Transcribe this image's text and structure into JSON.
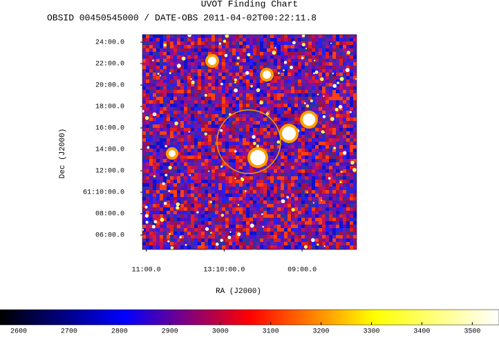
{
  "chart_data": {
    "type": "image",
    "title": "UVOT Finding Chart",
    "subtitle": "OBSID 00450545000 / DATE-OBS 2011-04-02T00:22:11.8",
    "x_label": "RA (J2000)",
    "y_label": "Dec (J2000)",
    "xlim": [
      11.05,
      8.3
    ],
    "xticks": [
      {
        "value": 11,
        "label": "11:00.0"
      },
      {
        "value": 10,
        "label": "13:10:00.0"
      },
      {
        "value": 9,
        "label": "09:00.0"
      }
    ],
    "ylim": [
      4.65,
      24.71
    ],
    "yticks": [
      {
        "value": 24,
        "label": "24:00.0"
      },
      {
        "value": 22,
        "label": "22:00.0"
      },
      {
        "value": 20,
        "label": "20:00.0"
      },
      {
        "value": 18,
        "label": "18:00.0"
      },
      {
        "value": 16,
        "label": "16:00.0"
      },
      {
        "value": 14,
        "label": "14:00.0"
      },
      {
        "value": 12,
        "label": "12:00.0"
      },
      {
        "value": 10,
        "label": "61:10:00.0"
      },
      {
        "value": 8,
        "label": "08:00.0"
      },
      {
        "value": 6,
        "label": "06:00.0"
      }
    ],
    "clim": [
      2563,
      3553
    ],
    "cticks": [
      2600,
      2700,
      2800,
      2900,
      3000,
      3100,
      3200,
      3300,
      3400,
      3500
    ]
  }
}
